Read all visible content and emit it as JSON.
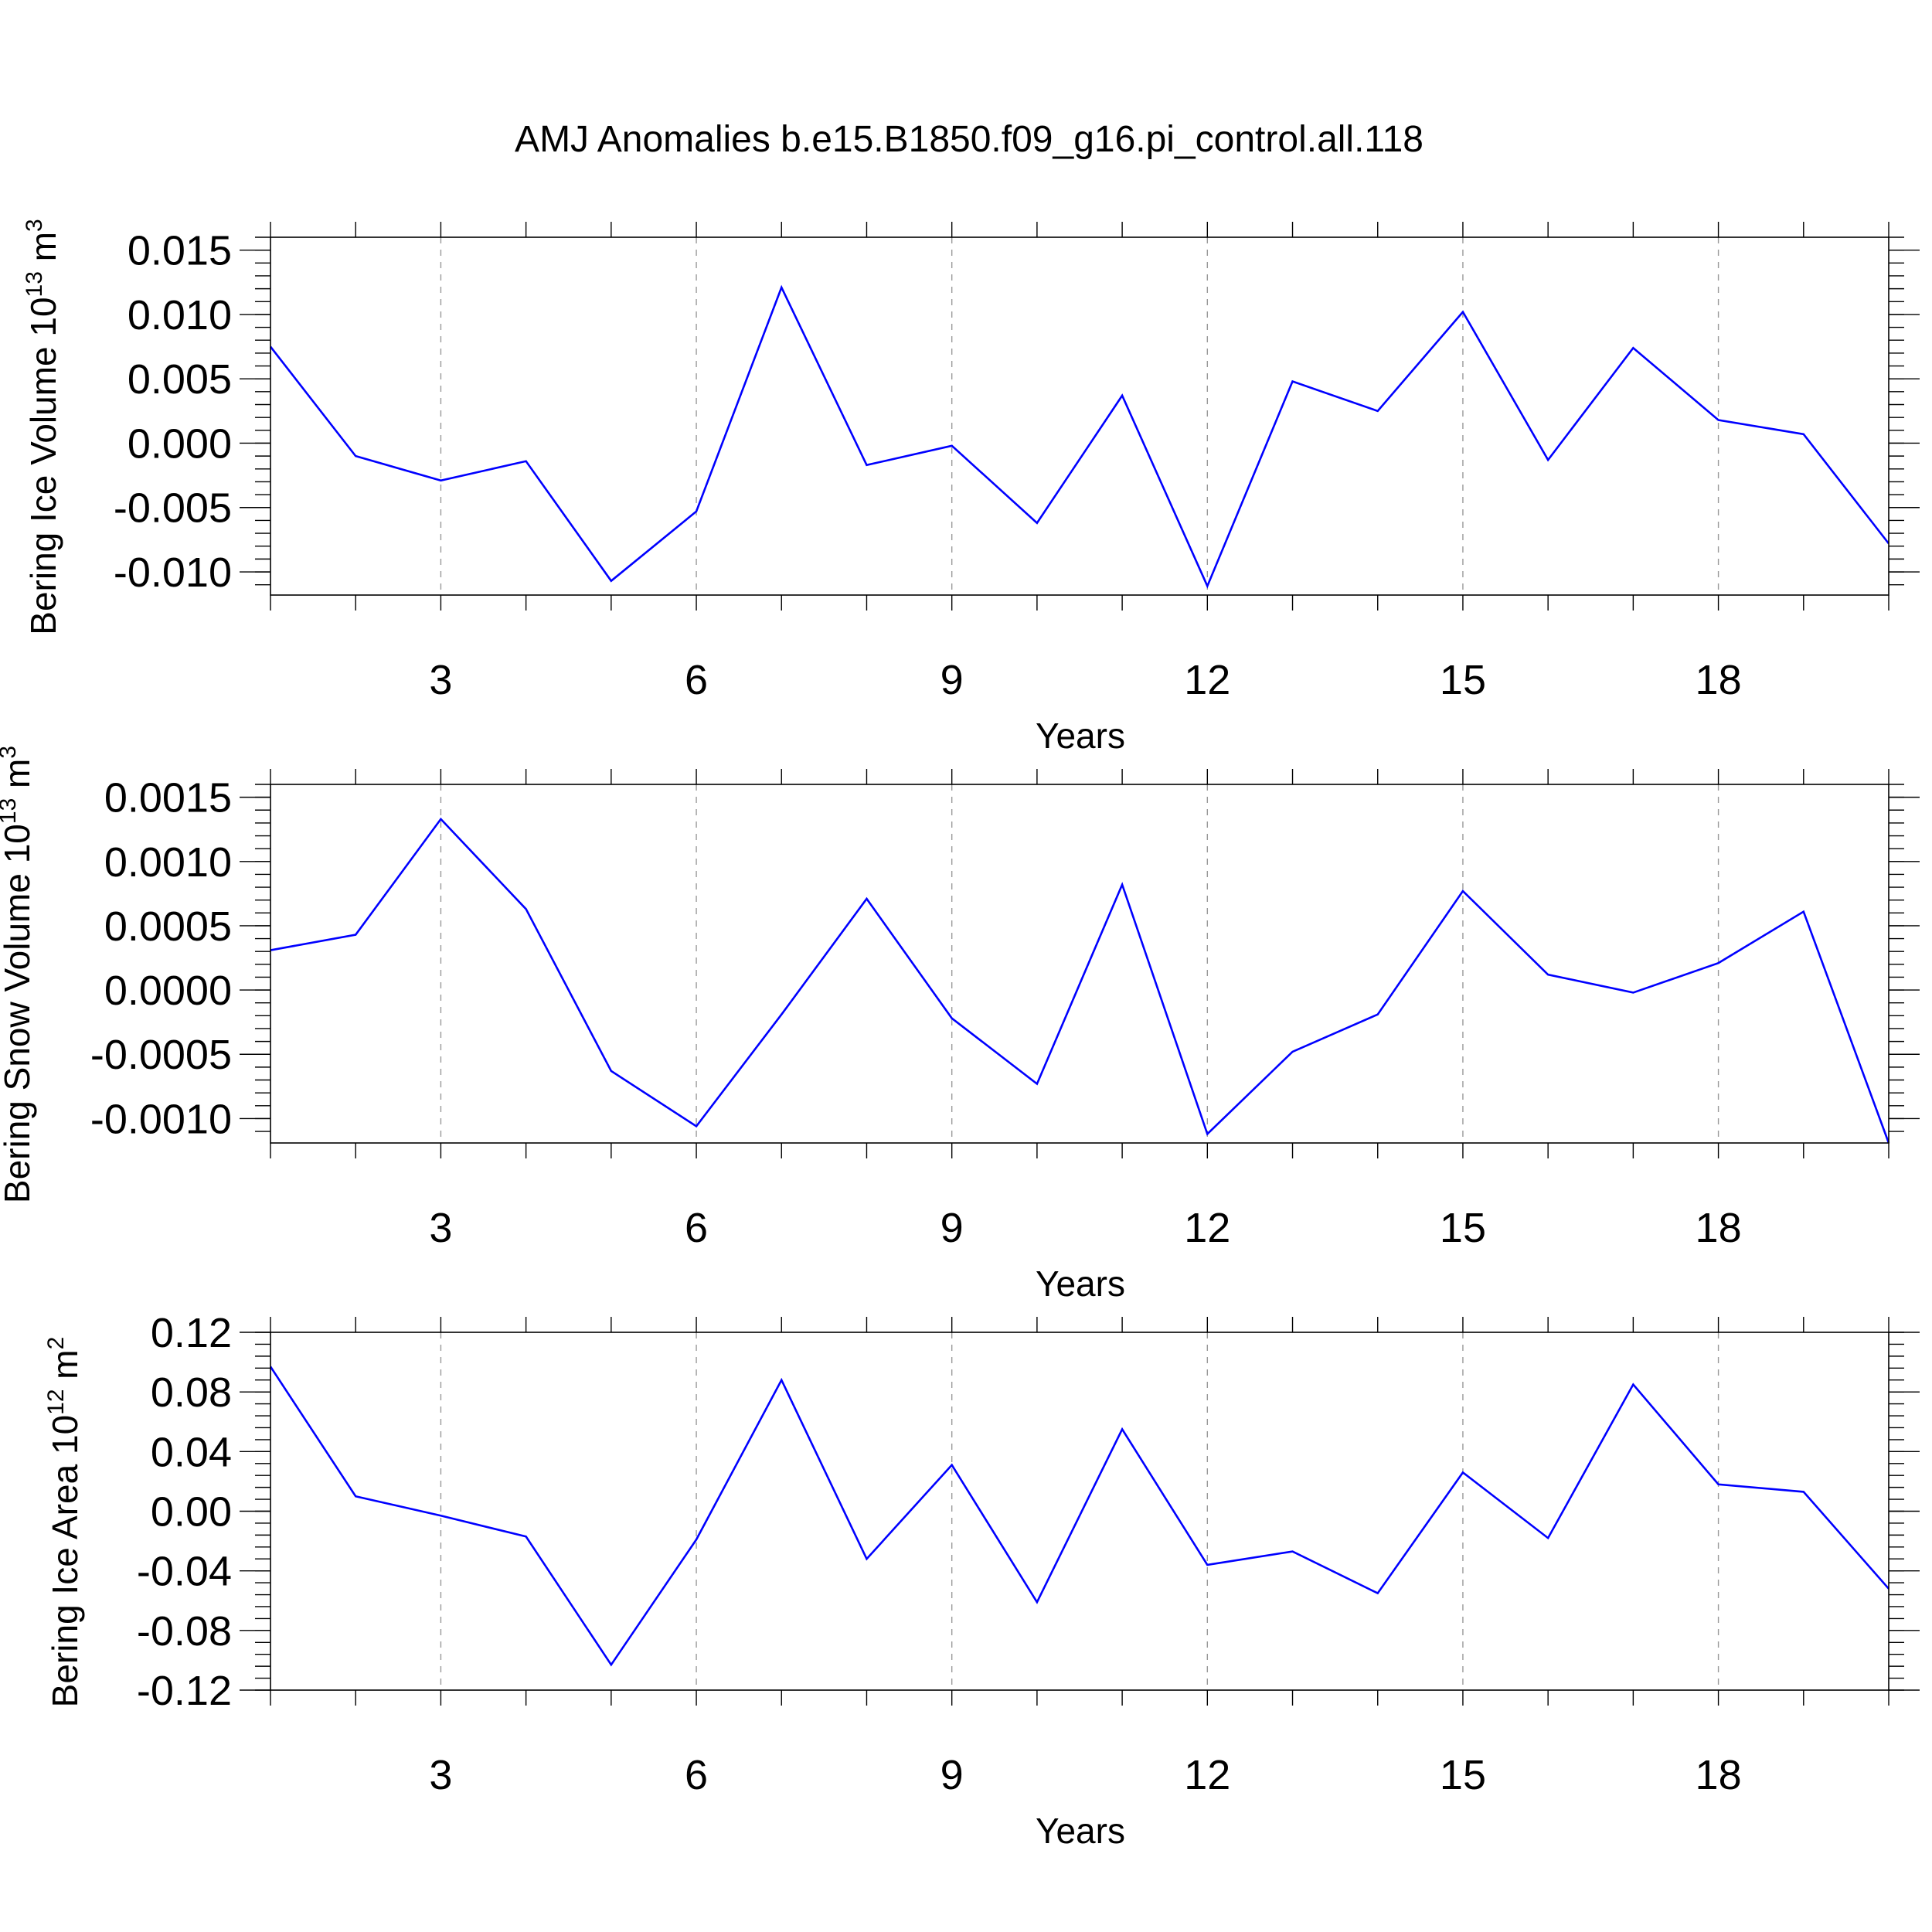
{
  "title": "AMJ Anomalies b.e15.B1850.f09_g16.pi_control.all.118",
  "chart_data": [
    {
      "type": "line",
      "ylabel": {
        "text": "Bering Ice Volume 10",
        "exp": "13",
        "unit": " m",
        "unit_exp": "3"
      },
      "xlabel": "Years",
      "x": [
        1,
        2,
        3,
        4,
        5,
        6,
        7,
        8,
        9,
        10,
        11,
        12,
        13,
        14,
        15,
        16,
        17,
        18,
        19,
        20
      ],
      "xlim": [
        1,
        20
      ],
      "xticks": [
        3,
        6,
        9,
        12,
        15,
        18
      ],
      "ylim": [
        -0.0118,
        0.016
      ],
      "yticks": [
        -0.01,
        -0.005,
        0.0,
        0.005,
        0.01,
        0.015
      ],
      "ytick_labels": [
        "-0.010",
        "-0.005",
        "0.000",
        "0.005",
        "0.010",
        "0.015"
      ],
      "y_minor_step": 0.001,
      "grid": "vertical dashed at major x ticks",
      "color": "#0000ff",
      "values": [
        0.0075,
        -0.001,
        -0.0029,
        -0.0014,
        -0.0107,
        -0.0053,
        0.0121,
        -0.0017,
        -0.0002,
        -0.0062,
        0.0037,
        -0.0111,
        0.0048,
        0.0025,
        0.0102,
        -0.0013,
        0.0074,
        0.0018,
        0.0007,
        -0.0078
      ]
    },
    {
      "type": "line",
      "ylabel": {
        "text": "Bering Snow Volume 10",
        "exp": "13",
        "unit": " m",
        "unit_exp": "3"
      },
      "xlabel": "Years",
      "x": [
        1,
        2,
        3,
        4,
        5,
        6,
        7,
        8,
        9,
        10,
        11,
        12,
        13,
        14,
        15,
        16,
        17,
        18,
        19,
        20
      ],
      "xlim": [
        1,
        20
      ],
      "xticks": [
        3,
        6,
        9,
        12,
        15,
        18
      ],
      "ylim": [
        -0.00119,
        0.0016
      ],
      "yticks": [
        -0.001,
        -0.0005,
        0.0,
        0.0005,
        0.001,
        0.0015
      ],
      "ytick_labels": [
        "-0.0010",
        "-0.0005",
        "0.0000",
        "0.0005",
        "0.0010",
        "0.0015"
      ],
      "y_minor_step": 0.0001,
      "grid": "vertical dashed at major x ticks",
      "color": "#0000ff",
      "values": [
        0.00031,
        0.00043,
        0.00133,
        0.00063,
        -0.00063,
        -0.00106,
        -0.00019,
        0.00071,
        -0.00022,
        -0.00073,
        0.00082,
        -0.00112,
        -0.00048,
        -0.00019,
        0.00077,
        0.00012,
        -2e-05,
        0.00021,
        0.00061,
        -0.00119
      ]
    },
    {
      "type": "line",
      "ylabel": {
        "text": "Bering Ice Area 10",
        "exp": "12",
        "unit": " m",
        "unit_exp": "2"
      },
      "xlabel": "Years",
      "x": [
        1,
        2,
        3,
        4,
        5,
        6,
        7,
        8,
        9,
        10,
        11,
        12,
        13,
        14,
        15,
        16,
        17,
        18,
        19,
        20
      ],
      "xlim": [
        1,
        20
      ],
      "xticks": [
        3,
        6,
        9,
        12,
        15,
        18
      ],
      "ylim": [
        -0.12,
        0.12
      ],
      "yticks": [
        -0.12,
        -0.08,
        -0.04,
        0.0,
        0.04,
        0.08,
        0.12
      ],
      "ytick_labels": [
        "-0.12",
        "-0.08",
        "-0.04",
        "0.00",
        "0.04",
        "0.08",
        "0.12"
      ],
      "y_minor_step": 0.008,
      "grid": "vertical dashed at major x ticks",
      "color": "#0000ff",
      "values": [
        0.097,
        0.01,
        -0.003,
        -0.017,
        -0.103,
        -0.019,
        0.088,
        -0.032,
        0.031,
        -0.061,
        0.055,
        -0.036,
        -0.027,
        -0.055,
        0.026,
        -0.018,
        0.085,
        0.018,
        0.013,
        -0.052
      ]
    }
  ]
}
